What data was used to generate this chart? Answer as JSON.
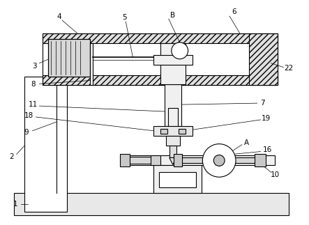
{
  "background_color": "#ffffff",
  "line_color": "#000000",
  "fig_width": 4.43,
  "fig_height": 3.23,
  "dpi": 100,
  "label_fontsize": 7.5,
  "lw": 0.8,
  "thin_lw": 0.5,
  "thick_lw": 1.2,
  "hatch_color": "#aaaaaa",
  "fc_light": "#f0f0f0",
  "fc_mid": "#e0e0e0",
  "fc_dark": "#c8c8c8",
  "fc_base": "#e8e8e8"
}
